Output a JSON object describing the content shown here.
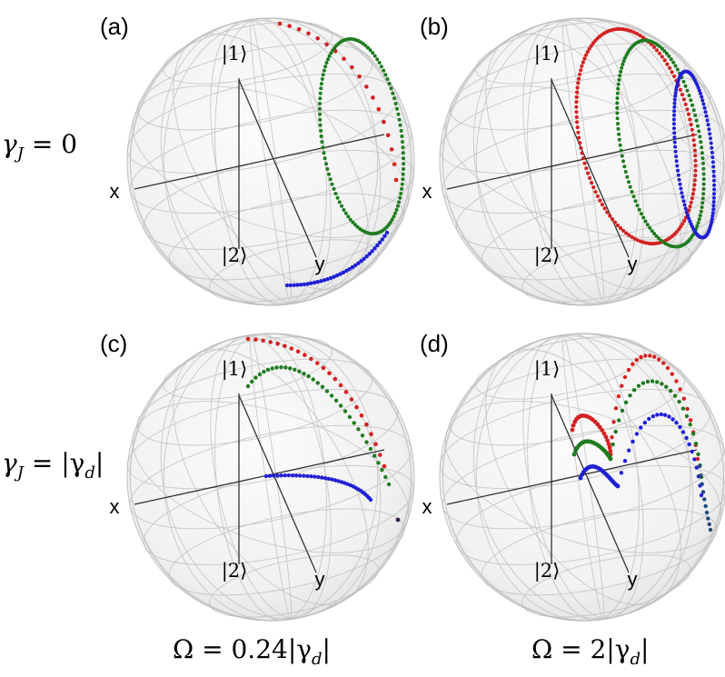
{
  "panels": [
    {
      "id": "a",
      "label": "(a)",
      "top_ket": "|1⟩",
      "bottom_ket": "|2⟩",
      "x_axis": "x",
      "y_axis": "y"
    },
    {
      "id": "b",
      "label": "(b)",
      "top_ket": "|1⟩",
      "bottom_ket": "|2⟩",
      "x_axis": "x",
      "y_axis": "y"
    },
    {
      "id": "c",
      "label": "(c)",
      "top_ket": "|1⟩",
      "bottom_ket": "|2⟩",
      "x_axis": "x",
      "y_axis": "y"
    },
    {
      "id": "d",
      "label": "(d)",
      "top_ket": "|1⟩",
      "bottom_ket": "|2⟩",
      "x_axis": "x",
      "y_axis": "y"
    }
  ],
  "row_labels": {
    "row1": {
      "symbol": "γ",
      "sub": "J",
      "rest": " = 0"
    },
    "row2": {
      "symbol": "γ",
      "sub": "J",
      "rest": " = |γ",
      "sub2": "d",
      "end": "|"
    }
  },
  "column_labels": {
    "col1": {
      "prefix": "Ω = 0.24|γ",
      "sub": "d",
      "end": "|"
    },
    "col2": {
      "prefix": "Ω = 2|γ",
      "sub": "d",
      "end": "|"
    }
  },
  "colors": {
    "red": "#d42020",
    "green": "#1e7b1e",
    "blue": "#1f1fd4",
    "grid": "#b8b8b8",
    "axis": "#333333"
  }
}
